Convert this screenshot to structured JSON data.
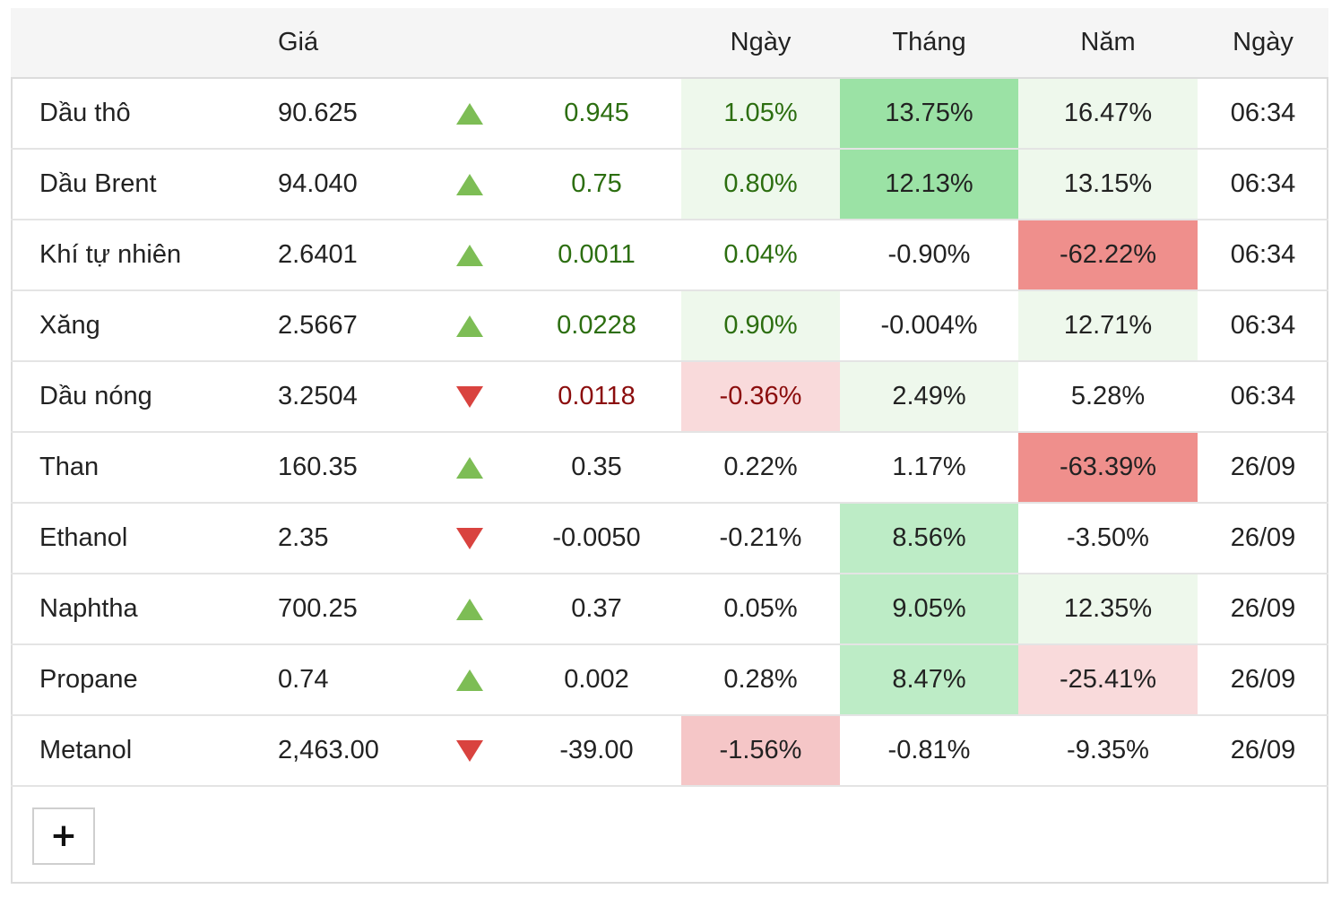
{
  "header": {
    "col_name": "",
    "col_price": "Giá",
    "col_arrow": "",
    "col_change": "",
    "col_day": "Ngày",
    "col_month": "Tháng",
    "col_year": "Năm",
    "col_date": "Ngày"
  },
  "colors": {
    "up_text": "#2c6e10",
    "down_text": "#8b0d0d",
    "light_green": "#eef8ec",
    "mid_green": "#bdecc6",
    "strong_green": "#9be2a5",
    "light_red": "#f9dadb",
    "mid_red": "#f5c6c7",
    "strong_red": "#ef8f8c"
  },
  "rows": [
    {
      "name": "Dầu thô",
      "price": "90.625",
      "direction": "up",
      "change": "0.945",
      "day": "1.05%",
      "month": "13.75%",
      "year": "16.47%",
      "time": "06:34"
    },
    {
      "name": "Dầu Brent",
      "price": "94.040",
      "direction": "up",
      "change": "0.75",
      "day": "0.80%",
      "month": "12.13%",
      "year": "13.15%",
      "time": "06:34"
    },
    {
      "name": "Khí tự nhiên",
      "price": "2.6401",
      "direction": "up",
      "change": "0.0011",
      "day": "0.04%",
      "month": "-0.90%",
      "year": "-62.22%",
      "time": "06:34"
    },
    {
      "name": "Xăng",
      "price": "2.5667",
      "direction": "up",
      "change": "0.0228",
      "day": "0.90%",
      "month": "-0.004%",
      "year": "12.71%",
      "time": "06:34"
    },
    {
      "name": "Dầu nóng",
      "price": "3.2504",
      "direction": "down",
      "change": "0.0118",
      "day": "-0.36%",
      "month": "2.49%",
      "year": "5.28%",
      "time": "06:34"
    },
    {
      "name": "Than",
      "price": "160.35",
      "direction": "up",
      "change": "0.35",
      "day": "0.22%",
      "month": "1.17%",
      "year": "-63.39%",
      "time": "26/09"
    },
    {
      "name": "Ethanol",
      "price": "2.35",
      "direction": "down",
      "change": "-0.0050",
      "day": "-0.21%",
      "month": "8.56%",
      "year": "-3.50%",
      "time": "26/09"
    },
    {
      "name": "Naphtha",
      "price": "700.25",
      "direction": "up",
      "change": "0.37",
      "day": "0.05%",
      "month": "9.05%",
      "year": "12.35%",
      "time": "26/09"
    },
    {
      "name": "Propane",
      "price": "0.74",
      "direction": "up",
      "change": "0.002",
      "day": "0.28%",
      "month": "8.47%",
      "year": "-25.41%",
      "time": "26/09"
    },
    {
      "name": "Metanol",
      "price": "2,463.00",
      "direction": "down",
      "change": "-39.00",
      "day": "-1.56%",
      "month": "-0.81%",
      "year": "-9.35%",
      "time": "26/09"
    }
  ],
  "add_button": {
    "label": "+"
  }
}
